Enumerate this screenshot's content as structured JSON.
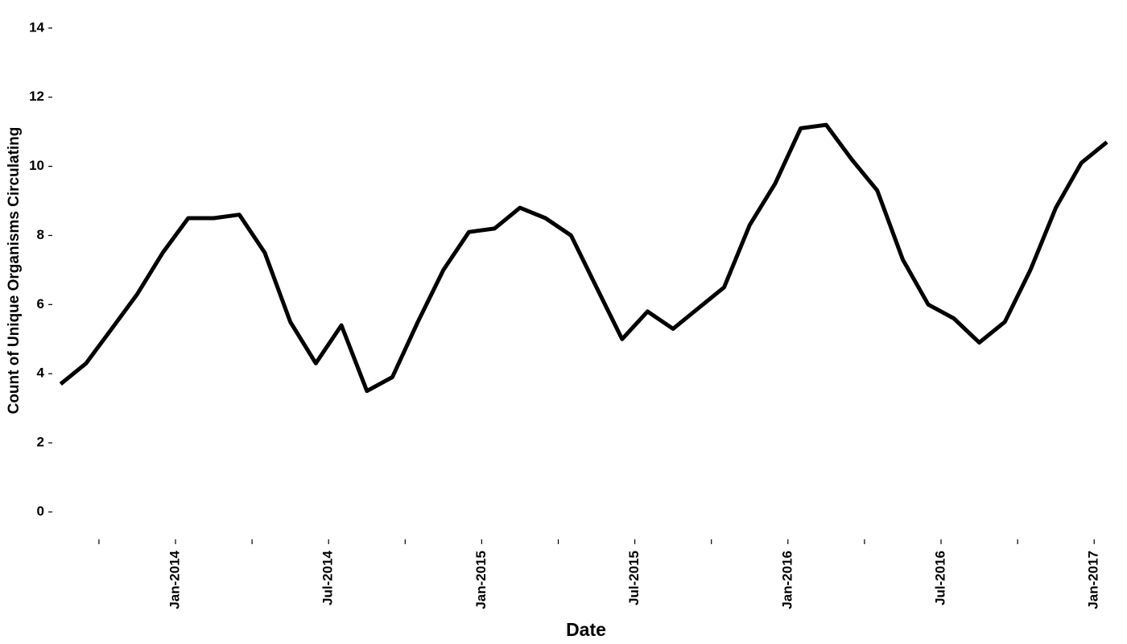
{
  "chart_data": {
    "type": "line",
    "x_label": "Date",
    "y_label": "Count of Unique Organisms Circulating",
    "x": [
      "Aug-2013",
      "Sep-2013",
      "Oct-2013",
      "Nov-2013",
      "Dec-2013",
      "Jan-2014",
      "Feb-2014",
      "Mar-2014",
      "Apr-2014",
      "May-2014",
      "Jun-2014",
      "Jul-2014",
      "Aug-2014",
      "Sep-2014",
      "Oct-2014",
      "Nov-2014",
      "Dec-2014",
      "Jan-2015",
      "Feb-2015",
      "Mar-2015",
      "Apr-2015",
      "May-2015",
      "Jun-2015",
      "Jul-2015",
      "Aug-2015",
      "Sep-2015",
      "Oct-2015",
      "Nov-2015",
      "Dec-2015",
      "Jan-2016",
      "Feb-2016",
      "Mar-2016",
      "Apr-2016",
      "May-2016",
      "Jun-2016",
      "Jul-2016",
      "Aug-2016",
      "Sep-2016",
      "Oct-2016",
      "Nov-2016",
      "Dec-2016",
      "Jan-2017"
    ],
    "values": [
      3.7,
      4.3,
      5.3,
      6.3,
      7.5,
      8.5,
      8.5,
      8.6,
      7.5,
      5.5,
      4.3,
      5.4,
      3.5,
      3.9,
      5.5,
      7.0,
      8.1,
      8.2,
      8.8,
      8.5,
      8.0,
      6.5,
      5.0,
      5.8,
      5.3,
      5.9,
      6.5,
      8.3,
      9.5,
      11.1,
      11.2,
      10.2,
      9.3,
      7.3,
      6.0,
      5.6,
      4.9,
      5.5,
      7.0,
      8.8,
      10.1,
      10.7
    ],
    "color": "#000000",
    "ylim": [
      -0.7,
      14.3
    ],
    "yticks": [
      0,
      2,
      4,
      6,
      8,
      10,
      12,
      14
    ],
    "xticks": [
      {
        "value": "Oct-2013",
        "label": null
      },
      "Jan-2014",
      {
        "value": "Apr-2014",
        "label": null
      },
      "Jul-2014",
      {
        "value": "Oct-2014",
        "label": null
      },
      "Jan-2015",
      {
        "value": "Apr-2015",
        "label": null
      },
      "Jul-2015",
      {
        "value": "Oct-2015",
        "label": null
      },
      "Jan-2016",
      {
        "value": "Apr-2016",
        "label": null
      },
      "Jul-2016",
      {
        "value": "Oct-2016",
        "label": null
      },
      "Jan-2017"
    ],
    "grid": false
  }
}
